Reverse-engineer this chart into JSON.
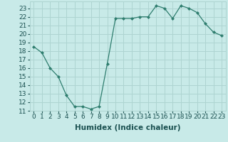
{
  "x": [
    0,
    1,
    2,
    3,
    4,
    5,
    6,
    7,
    8,
    9,
    10,
    11,
    12,
    13,
    14,
    15,
    16,
    17,
    18,
    19,
    20,
    21,
    22,
    23
  ],
  "y": [
    18.5,
    17.8,
    16.0,
    15.0,
    12.8,
    11.5,
    11.5,
    11.2,
    11.5,
    16.5,
    21.8,
    21.8,
    21.8,
    22.0,
    22.0,
    23.3,
    23.0,
    21.8,
    23.3,
    23.0,
    22.5,
    21.2,
    20.2,
    19.8
  ],
  "line_color": "#2e7d6e",
  "marker": "D",
  "marker_size": 2.0,
  "bg_color": "#c8eae8",
  "grid_color": "#aed4d1",
  "xlabel": "Humidex (Indice chaleur)",
  "ylim": [
    11,
    23.8
  ],
  "xlim": [
    -0.5,
    23.5
  ],
  "yticks": [
    11,
    12,
    13,
    14,
    15,
    16,
    17,
    18,
    19,
    20,
    21,
    22,
    23
  ],
  "xticks": [
    0,
    1,
    2,
    3,
    4,
    5,
    6,
    7,
    8,
    9,
    10,
    11,
    12,
    13,
    14,
    15,
    16,
    17,
    18,
    19,
    20,
    21,
    22,
    23
  ],
  "xlabel_fontsize": 7.5,
  "tick_fontsize": 6.5
}
